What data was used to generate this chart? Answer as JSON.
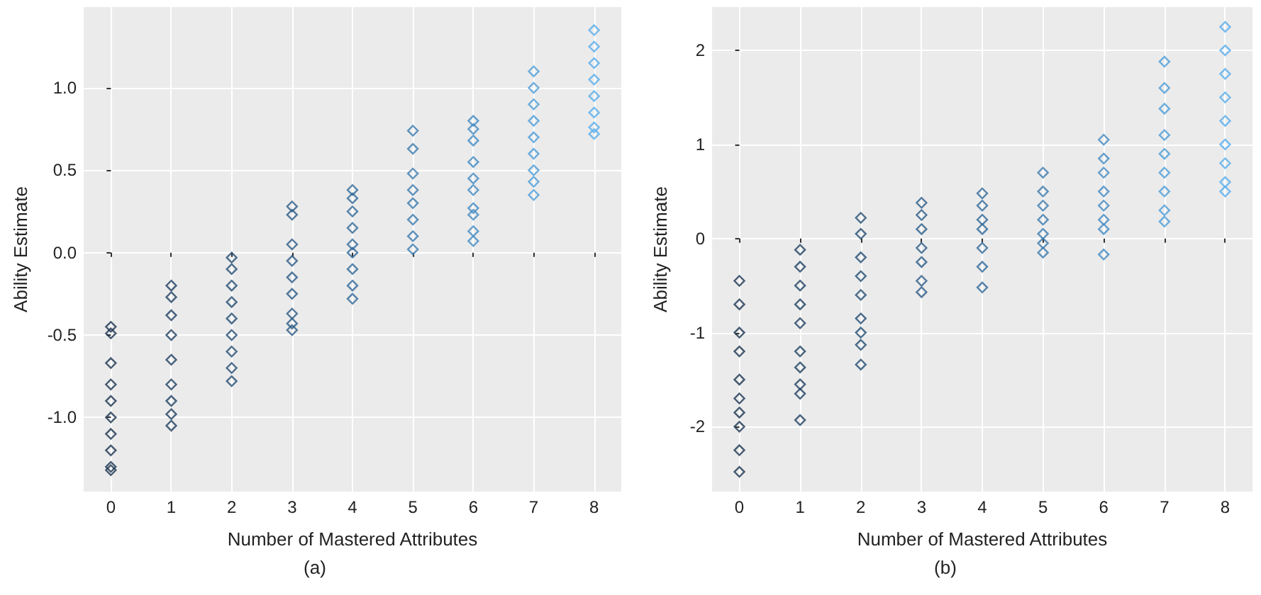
{
  "chart_data": [
    {
      "type": "scatter",
      "xlabel": "Number of Mastered Attributes",
      "ylabel": "Ability Estimate",
      "annotations": [
        "(a)"
      ],
      "xlim": [
        -0.45,
        8.45
      ],
      "xticks": [
        0,
        1,
        2,
        3,
        4,
        5,
        6,
        7,
        8
      ],
      "ylim": [
        -1.45,
        1.49
      ],
      "yticks": [
        {
          "value": -1,
          "label": "-1.0"
        },
        {
          "value": -0.5,
          "label": "-0.5"
        },
        {
          "value": 0,
          "label": "0.0"
        },
        {
          "value": 0.5,
          "label": "0.5"
        },
        {
          "value": 1,
          "label": "1.0"
        }
      ],
      "grid": true,
      "marker": "diamond",
      "series": [
        {
          "color": "#1b3550",
          "x": [
            0,
            0,
            0,
            0,
            0,
            0,
            0,
            0,
            0,
            0
          ],
          "values": [
            -0.45,
            -0.49,
            -0.67,
            -0.8,
            -0.9,
            -1.0,
            -1.1,
            -1.2,
            -1.3,
            -1.32
          ]
        },
        {
          "color": "#1e3f60",
          "x": [
            1,
            1,
            1,
            1,
            1,
            1,
            1,
            1,
            1
          ],
          "values": [
            -0.2,
            -0.27,
            -0.38,
            -0.5,
            -0.65,
            -0.8,
            -0.9,
            -0.98,
            -1.05
          ]
        },
        {
          "color": "#234c72",
          "x": [
            2,
            2,
            2,
            2,
            2,
            2,
            2,
            2,
            2
          ],
          "values": [
            -0.03,
            -0.1,
            -0.2,
            -0.3,
            -0.4,
            -0.5,
            -0.6,
            -0.7,
            -0.78
          ]
        },
        {
          "color": "#2a5a86",
          "x": [
            3,
            3,
            3,
            3,
            3,
            3,
            3,
            3,
            3
          ],
          "values": [
            0.28,
            0.23,
            0.05,
            -0.05,
            -0.15,
            -0.25,
            -0.37,
            -0.43,
            -0.47
          ]
        },
        {
          "color": "#306898",
          "x": [
            4,
            4,
            4,
            4,
            4,
            4,
            4,
            4,
            4
          ],
          "values": [
            0.38,
            0.33,
            0.25,
            0.15,
            0.05,
            0.0,
            -0.1,
            -0.2,
            -0.28
          ]
        },
        {
          "color": "#3a79ad",
          "x": [
            5,
            5,
            5,
            5,
            5,
            5,
            5,
            5
          ],
          "values": [
            0.74,
            0.63,
            0.48,
            0.38,
            0.3,
            0.2,
            0.1,
            0.02
          ]
        },
        {
          "color": "#428ac2",
          "x": [
            6,
            6,
            6,
            6,
            6,
            6,
            6,
            6,
            6,
            6
          ],
          "values": [
            0.8,
            0.75,
            0.68,
            0.55,
            0.45,
            0.38,
            0.27,
            0.23,
            0.13,
            0.07
          ]
        },
        {
          "color": "#4b9cd8",
          "x": [
            7,
            7,
            7,
            7,
            7,
            7,
            7,
            7,
            7
          ],
          "values": [
            1.1,
            1.0,
            0.9,
            0.8,
            0.7,
            0.6,
            0.5,
            0.43,
            0.35
          ]
        },
        {
          "color": "#56acec",
          "x": [
            8,
            8,
            8,
            8,
            8,
            8,
            8,
            8
          ],
          "values": [
            1.35,
            1.25,
            1.15,
            1.05,
            0.95,
            0.85,
            0.76,
            0.72
          ]
        }
      ]
    },
    {
      "type": "scatter",
      "xlabel": "Number of Mastered Attributes",
      "ylabel": "Ability Estimate",
      "annotations": [
        "(b)"
      ],
      "xlim": [
        -0.45,
        8.45
      ],
      "xticks": [
        0,
        1,
        2,
        3,
        4,
        5,
        6,
        7,
        8
      ],
      "ylim": [
        -2.69,
        2.46
      ],
      "yticks": [
        -2,
        -1,
        0,
        1,
        2
      ],
      "grid": true,
      "marker": "diamond",
      "series": [
        {
          "color": "#1b3550",
          "x": [
            0,
            0,
            0,
            0,
            0,
            0,
            0,
            0,
            0,
            0
          ],
          "values": [
            -0.45,
            -0.7,
            -1.0,
            -1.2,
            -1.5,
            -1.7,
            -1.85,
            -2.0,
            -2.25,
            -2.48
          ]
        },
        {
          "color": "#1e3f60",
          "x": [
            1,
            1,
            1,
            1,
            1,
            1,
            1,
            1,
            1,
            1
          ],
          "values": [
            -0.12,
            -0.3,
            -0.5,
            -0.7,
            -0.9,
            -1.2,
            -1.37,
            -1.55,
            -1.65,
            -1.93
          ]
        },
        {
          "color": "#234c72",
          "x": [
            2,
            2,
            2,
            2,
            2,
            2,
            2,
            2,
            2
          ],
          "values": [
            0.22,
            0.05,
            -0.2,
            -0.4,
            -0.6,
            -0.85,
            -1.0,
            -1.13,
            -1.34
          ]
        },
        {
          "color": "#2a5a86",
          "x": [
            3,
            3,
            3,
            3,
            3,
            3,
            3
          ],
          "values": [
            0.38,
            0.25,
            0.1,
            -0.1,
            -0.25,
            -0.45,
            -0.57
          ]
        },
        {
          "color": "#306898",
          "x": [
            4,
            4,
            4,
            4,
            4,
            4,
            4
          ],
          "values": [
            0.48,
            0.35,
            0.2,
            0.1,
            -0.1,
            -0.3,
            -0.52
          ]
        },
        {
          "color": "#3a79ad",
          "x": [
            5,
            5,
            5,
            5,
            5,
            5,
            5
          ],
          "values": [
            0.7,
            0.5,
            0.35,
            0.2,
            0.05,
            -0.05,
            -0.15
          ]
        },
        {
          "color": "#428ac2",
          "x": [
            6,
            6,
            6,
            6,
            6,
            6,
            6,
            6
          ],
          "values": [
            1.05,
            0.85,
            0.7,
            0.5,
            0.35,
            0.2,
            0.1,
            -0.17
          ]
        },
        {
          "color": "#4b9cd8",
          "x": [
            7,
            7,
            7,
            7,
            7,
            7,
            7,
            7,
            7
          ],
          "values": [
            1.88,
            1.6,
            1.38,
            1.1,
            0.9,
            0.7,
            0.5,
            0.3,
            0.18
          ]
        },
        {
          "color": "#56acec",
          "x": [
            8,
            8,
            8,
            8,
            8,
            8,
            8,
            8,
            8
          ],
          "values": [
            2.25,
            2.0,
            1.75,
            1.5,
            1.25,
            1.0,
            0.8,
            0.6,
            0.5
          ]
        }
      ]
    }
  ]
}
